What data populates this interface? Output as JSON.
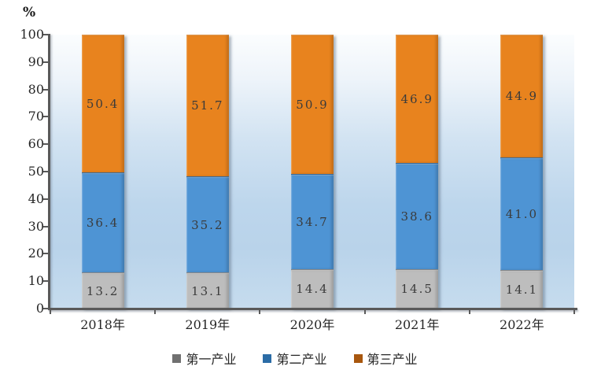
{
  "chart": {
    "unit_label": "%",
    "axis_color": "#595959",
    "text_color": "#262626",
    "plot_bg_top": "#FBFDFE",
    "plot_bg_bottom": "#C6DCEE"
  },
  "chart_data": {
    "type": "bar",
    "stacked": true,
    "title": "",
    "xlabel": "",
    "ylabel": "%",
    "categories": [
      "2018年",
      "2019年",
      "2020年",
      "2021年",
      "2022年"
    ],
    "series": [
      {
        "name": "第一产业",
        "color": "#BDBDBD",
        "legend_color": "#707070",
        "values": [
          13.2,
          13.1,
          14.4,
          14.5,
          14.1
        ],
        "value_labels": [
          "13.2",
          "13.1",
          "14.4",
          "14.5",
          "14.1"
        ]
      },
      {
        "name": "第二产业",
        "color": "#4E94D4",
        "legend_color": "#2B6CA6",
        "values": [
          36.4,
          35.2,
          34.7,
          38.6,
          41.0
        ],
        "value_labels": [
          "36.4",
          "35.2",
          "34.7",
          "38.6",
          "41.0"
        ]
      },
      {
        "name": "第三产业",
        "color": "#E8831E",
        "legend_color": "#A8570E",
        "values": [
          50.4,
          51.7,
          50.9,
          46.9,
          44.9
        ],
        "value_labels": [
          "50.4",
          "51.7",
          "50.9",
          "46.9",
          "44.9"
        ]
      }
    ],
    "ylim": [
      0,
      100
    ],
    "ytick_labels": [
      "0",
      "10",
      "20",
      "30",
      "40",
      "50",
      "60",
      "70",
      "80",
      "90",
      "100"
    ],
    "grid": false,
    "legend_position": "bottom"
  }
}
